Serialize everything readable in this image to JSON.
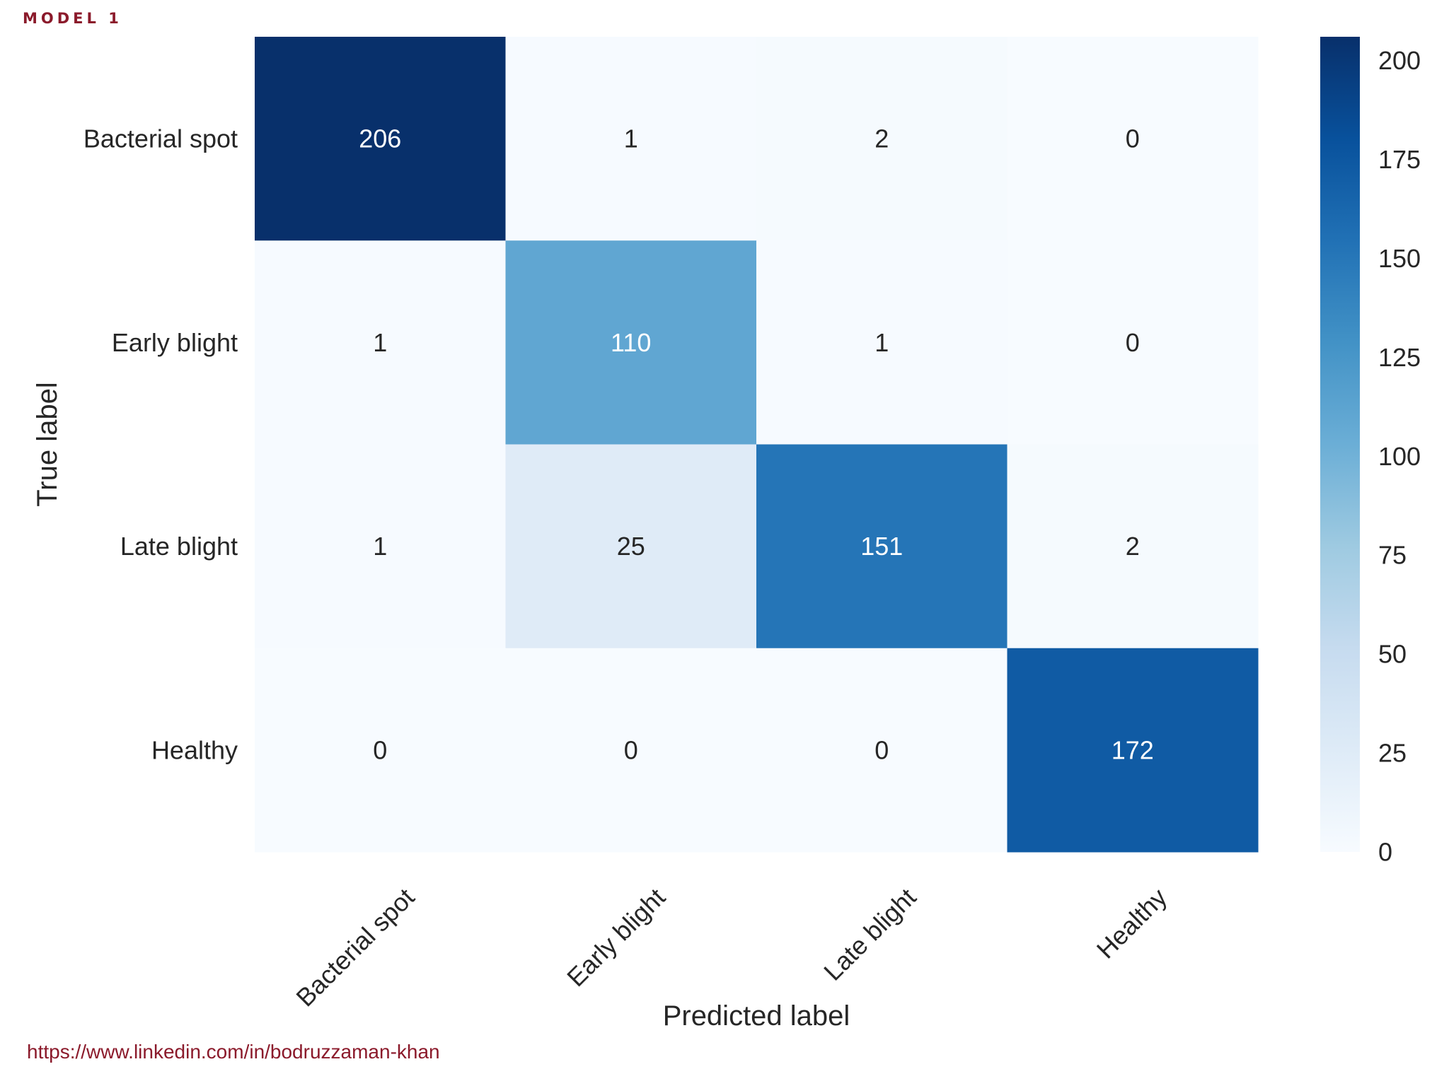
{
  "header": {
    "model_label": "MODEL 1"
  },
  "footer": {
    "link_text": "https://www.linkedin.com/in/bodruzzaman-khan"
  },
  "chart_data": {
    "type": "heatmap",
    "title": "",
    "xlabel": "Predicted label",
    "ylabel": "True label",
    "x_categories": [
      "Bacterial spot",
      "Early blight",
      "Late blight",
      "Healthy"
    ],
    "y_categories": [
      "Bacterial spot",
      "Early blight",
      "Late blight",
      "Healthy"
    ],
    "values": [
      [
        206,
        1,
        2,
        0
      ],
      [
        1,
        110,
        1,
        0
      ],
      [
        1,
        25,
        151,
        2
      ],
      [
        0,
        0,
        0,
        172
      ]
    ],
    "colormap": "Blues",
    "colorbar": {
      "min": 0,
      "max": 206,
      "ticks": [
        0,
        25,
        50,
        75,
        100,
        125,
        150,
        175,
        200
      ]
    },
    "grid": false,
    "colors": {
      "low": "#f7fbff",
      "high": "#08306b",
      "text_dark": "#262626",
      "text_light": "#ffffff"
    }
  }
}
